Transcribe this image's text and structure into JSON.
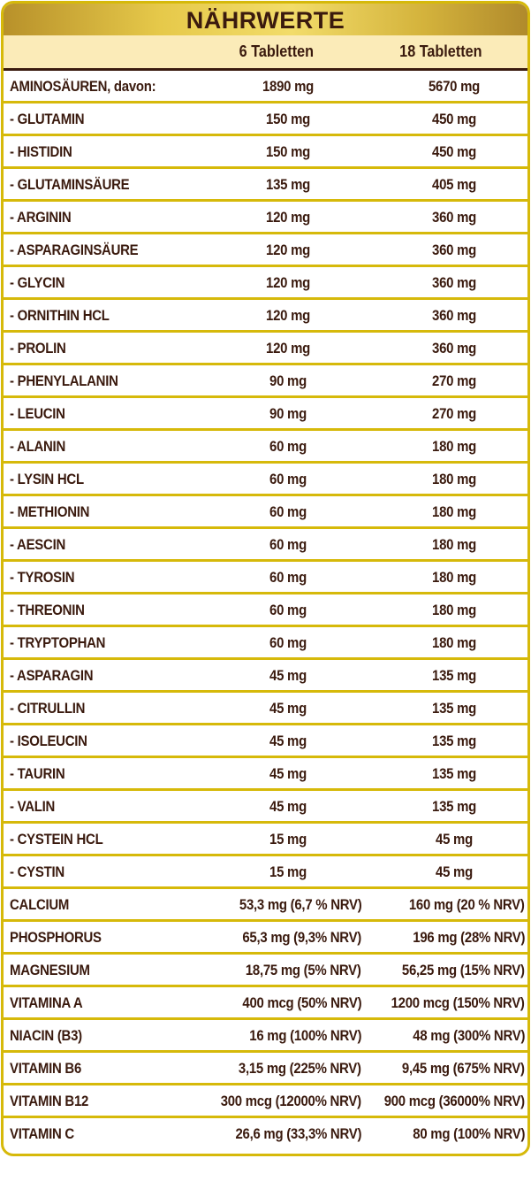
{
  "title": "NÄHRWERTE",
  "columns": [
    "6 Tabletten",
    "18 Tabletten"
  ],
  "colors": {
    "border": "#d6b90a",
    "text": "#3a1a0e",
    "subheader_bg": "#fbebb8",
    "header_gold": "#e6c94a"
  },
  "amino_rows": [
    {
      "name": "AMINOSÄUREN, davon:",
      "v1": "1890 mg",
      "v2": "5670 mg"
    },
    {
      "name": "- GLUTAMIN",
      "v1": "150 mg",
      "v2": "450 mg"
    },
    {
      "name": "- HISTIDIN",
      "v1": "150 mg",
      "v2": "450 mg"
    },
    {
      "name": "- GLUTAMINSÄURE",
      "v1": "135 mg",
      "v2": "405 mg"
    },
    {
      "name": "- ARGININ",
      "v1": "120 mg",
      "v2": "360 mg"
    },
    {
      "name": "- ASPARAGINSÄURE",
      "v1": "120 mg",
      "v2": "360 mg"
    },
    {
      "name": "- GLYCIN",
      "v1": "120 mg",
      "v2": "360 mg"
    },
    {
      "name": "- ORNITHIN HCL",
      "v1": "120 mg",
      "v2": "360 mg"
    },
    {
      "name": "- PROLIN",
      "v1": "120 mg",
      "v2": "360 mg"
    },
    {
      "name": "- PHENYLALANIN",
      "v1": "90 mg",
      "v2": "270 mg"
    },
    {
      "name": "- LEUCIN",
      "v1": "90 mg",
      "v2": "270 mg"
    },
    {
      "name": "- ALANIN",
      "v1": "60 mg",
      "v2": "180 mg"
    },
    {
      "name": "- LYSIN HCL",
      "v1": "60 mg",
      "v2": "180 mg"
    },
    {
      "name": "- METHIONIN",
      "v1": "60 mg",
      "v2": "180 mg"
    },
    {
      "name": "- AESCIN",
      "v1": "60 mg",
      "v2": "180 mg"
    },
    {
      "name": "- TYROSIN",
      "v1": "60 mg",
      "v2": "180 mg"
    },
    {
      "name": "- THREONIN",
      "v1": "60 mg",
      "v2": "180 mg"
    },
    {
      "name": "- TRYPTOPHAN",
      "v1": "60 mg",
      "v2": "180 mg"
    },
    {
      "name": "- ASPARAGIN",
      "v1": "45 mg",
      "v2": "135 mg"
    },
    {
      "name": "- CITRULLIN",
      "v1": "45 mg",
      "v2": "135 mg"
    },
    {
      "name": "- ISOLEUCIN",
      "v1": "45 mg",
      "v2": "135 mg"
    },
    {
      "name": "- TAURIN",
      "v1": "45 mg",
      "v2": "135 mg"
    },
    {
      "name": "- VALIN",
      "v1": "45 mg",
      "v2": "135 mg"
    },
    {
      "name": "- CYSTEIN HCL",
      "v1": "15 mg",
      "v2": "45 mg"
    },
    {
      "name": "- CYSTIN",
      "v1": "15 mg",
      "v2": "45 mg"
    }
  ],
  "nutrient_rows": [
    {
      "name": "CALCIUM",
      "v1": "53,3 mg (6,7 % NRV)",
      "v2": "160 mg (20 % NRV)"
    },
    {
      "name": "PHOSPHORUS",
      "v1": "65,3 mg (9,3% NRV)",
      "v2": "196 mg (28% NRV)"
    },
    {
      "name": "MAGNESIUM",
      "v1": "18,75 mg (5% NRV)",
      "v2": "56,25 mg (15% NRV)"
    },
    {
      "name": "VITAMINA A",
      "v1": "400 mcg (50% NRV)",
      "v2": "1200 mcg (150% NRV)"
    },
    {
      "name": "NIACIN (B3)",
      "v1": "16 mg (100% NRV)",
      "v2": "48 mg (300% NRV)"
    },
    {
      "name": "VITAMIN B6",
      "v1": "3,15 mg (225% NRV)",
      "v2": "9,45 mg (675% NRV)"
    },
    {
      "name": "VITAMIN B12",
      "v1": "300 mcg (12000% NRV)",
      "v2": "900 mcg (36000% NRV)"
    },
    {
      "name": "VITAMIN C",
      "v1": "26,6 mg (33,3% NRV)",
      "v2": "80 mg (100% NRV)"
    }
  ]
}
